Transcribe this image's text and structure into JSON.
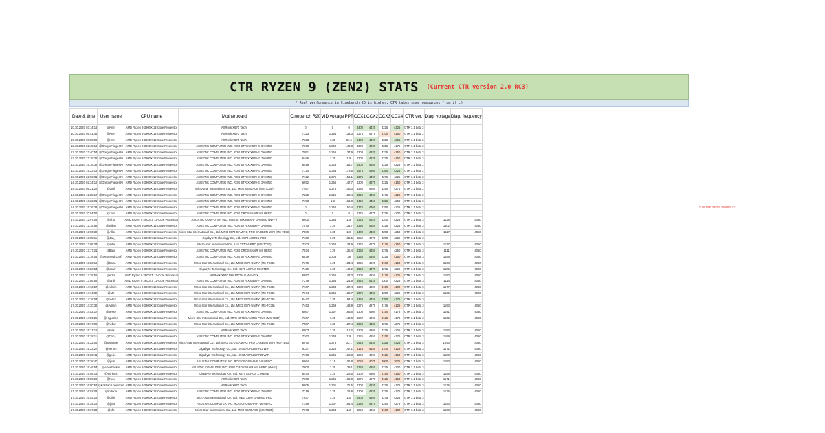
{
  "title": "CTR RYZEN 9 (ZEN2) STATS",
  "subtitle": "(Current CTR version 2.0 RC3)",
  "note": "* Real performance in Cinebench 20 is higher, CTR takes some resources from it ;)",
  "side_note": "< Where Ryzen Master ??",
  "columns": [
    "Date & time",
    "User name",
    "CPU name",
    "Motherboard",
    "Cinebench R20",
    "VID voltage",
    "PPT",
    "CCX1",
    "CCX2",
    "CCX3",
    "CCX4",
    "CTR ver.",
    "Diag. voltage",
    "Diag. frequency"
  ],
  "rows": [
    [
      "10.10.2020 03:14:19",
      "@Knef",
      "AMD Ryzen 9 3900X 12-Core Processor",
      "ASRock X570 Taichi",
      "0",
      "0",
      "0",
      "4400",
      "4425",
      "4225",
      "4325",
      "CTR 1.1 beta 2",
      "",
      ""
    ],
    [
      "10.10.2020 05:41:49",
      "@Knef",
      "AMD Ryzen 9 3900X 12-Core Processor",
      "ASRock X570 Taichi",
      "7323",
      "1.256",
      "131.3",
      "4275",
      "4275",
      "4100",
      "4150",
      "CTR 1.1 beta 2",
      "",
      ""
    ],
    [
      "10.10.2020 08:08:02",
      "@Knef",
      "AMD Ryzen 9 3900X 12-Core Processor",
      "ASRock X570 Taichi",
      "7323",
      "1.35",
      "31.6",
      "4400",
      "4425",
      "4225",
      "4325",
      "CTR 1.1 beta 2",
      "",
      ""
    ],
    [
      "12.10.2020 22:15:19",
      "@GregorFlieger99",
      "AMD Ryzen 9 3900X 12-Core Processor",
      "ASUSTeK COMPUTER INC. ROG STRIX X570-E GAMING",
      "7066",
      "1.269",
      "140.3",
      "4300",
      "4325",
      "4225",
      "4175",
      "CTR 1.1 beta 2",
      "",
      ""
    ],
    [
      "12.10.2020 22:40:54",
      "@GregorFlieger99",
      "AMD Ryzen 9 3900X 12-Core Processor",
      "ASUSTeK COMPUTER INC. ROG STRIX X570-E GAMING",
      "7051",
      "1.256",
      "137.9",
      "4300",
      "4325",
      "4225",
      "4150",
      "CTR 1.1 beta 2",
      "",
      ""
    ],
    [
      "12.10.2020 23:18:32",
      "@GregorFlieger99",
      "AMD Ryzen 9 3900X 12-Core Processor",
      "ASUSTeK COMPUTER INC. ROG STRIX X570-E GAMING",
      "6496",
      "1.25",
      "136",
      "4300",
      "4325",
      "4225",
      "4150",
      "CTR 1.1 beta 2",
      "",
      ""
    ],
    [
      "13.10.2020 15:18:39",
      "@GregorFlieger99",
      "AMD Ryzen 9 3900X 12-Core Processor",
      "ASUSTeK COMPUTER INC. ROG STRIX X570-E GAMING",
      "6919",
      "1.325",
      "154.7",
      "4400",
      "4400",
      "4225",
      "4225",
      "CTR 1.1 beta 2",
      "",
      ""
    ],
    [
      "13.10.2020 19:23:15",
      "@GregorFlieger99",
      "AMD Ryzen 9 3900X 12-Core Processor",
      "ASUSTeK COMPUTER INC. ROG STRIX X570-E GAMING",
      "7124",
      "1.363",
      "176.5",
      "4475",
      "4500",
      "4350",
      "4325",
      "CTR 1.1 beta 2",
      "",
      ""
    ],
    [
      "13.10.2020 22:03:31",
      "@GregorFlieger99",
      "AMD Ryzen 9 3900X 12-Core Processor",
      "ASUSTeK COMPUTER INC. ROG STRIX X570-E GAMING",
      "7122",
      "1.275",
      "151.1",
      "4375",
      "4400",
      "4275",
      "4225",
      "CTR 1.1 beta 2",
      "",
      ""
    ],
    [
      "14.10.2020 02:34:16",
      "@GregorFlieger99",
      "AMD Ryzen 9 3900X 12-Core Processor",
      "ASUSTeK COMPUTER INC. ROG STRIX X570-E GAMING",
      "6952",
      "1.256",
      "147.7",
      "4300",
      "4375",
      "4225",
      "4150",
      "CTR 1.1 beta 2",
      "",
      ""
    ],
    [
      "14.10.2020 05:21:26",
      "@z0lif",
      "AMD Ryzen 9 3900X 12-Core Processor",
      "Micro-Star International Co., Ltd. MEG X570 ACE (MS-7C35)",
      "7467",
      "1.275",
      "146.3",
      "4250",
      "4200",
      "4250",
      "4275",
      "CTR 1.1 beta 2",
      "",
      ""
    ],
    [
      "14.10.2020 12:28:17",
      "@GregorFlieger99",
      "AMD Ryzen 9 3900X 12-Core Processor",
      "ASUSTeK COMPUTER INC. ROG STRIX X570-E GAMING",
      "7225",
      "1.225",
      "138.4",
      "4325",
      "4350",
      "4175",
      "4125",
      "CTR 1.1 beta 2",
      "",
      ""
    ],
    [
      "14.10.2020 13:32:01",
      "@GregorFlieger99",
      "AMD Ryzen 9 3900X 12-Core Processor",
      "ASUSTeK COMPUTER INC. ROG STRIX X570-E GAMING",
      "7153",
      "1.3",
      "161.8",
      "4425",
      "4450",
      "4325",
      "4250",
      "CTR 1.1 beta 2",
      "",
      ""
    ],
    [
      "14.10.2020 15:26:33",
      "@GregorFlieger99",
      "AMD Ryzen 9 3900X 12-Core Processor",
      "ASUSTeK COMPUTER INC. ROG STRIX X570-E GAMING",
      "0",
      "1.256",
      "150.4",
      "4375",
      "4400",
      "4250",
      "4225",
      "CTR 1.1 beta 2",
      "",
      ""
    ],
    [
      "15.10.2020 20:54:09",
      "@Jojo",
      "AMD Ryzen 9 3900X 12-Core Processor",
      "ASUSTeK COMPUTER INC. ROG CROSSHAIR VIII HERO",
      "0",
      "0",
      "0",
      "4275",
      "4275",
      "4275",
      "4300",
      "CTR 1.1 beta 2",
      "",
      ""
    ],
    [
      "17.10.2020 12:07:05",
      "@chu",
      "AMD Ryzen 9 3900XT 12-Core Processor",
      "ASUSTeK COMPUTER INC. ROG STRIX B550-F GAMING (WI-FI)",
      "6900",
      "1.256",
      "138",
      "4325",
      "4325",
      "4200",
      "4225",
      "CTR 1.1 beta 3",
      "1138",
      "4050"
    ],
    [
      "17.10.2020 12:15:55",
      "@Julian",
      "AMD Ryzen 9 3900X 12-Core Processor",
      "ASUSTeK COMPUTER INC. ROG STRIX B550-F GAMING",
      "7570",
      "1.25",
      "134.7",
      "4350",
      "4350",
      "4225",
      "4225",
      "CTR 1.1 beta 3",
      "1102",
      "4050"
    ],
    [
      "17.10.2020 13:00:30",
      "@Allor",
      "AMD Ryzen 9 3900X 12-Core Processor",
      "Micro-Star International Co., Ltd. MPG X570 GAMING PRO CARBON WIFI (MS-7B93)",
      "7580",
      "1.35",
      "186",
      "4400",
      "4400",
      "4250",
      "4250",
      "CTR 1.1 beta 3",
      "1117",
      "4050"
    ],
    [
      "17.10.2020 13:05:11",
      "@Jan_",
      "AMD Ryzen 9 3900X 12-Core Processor",
      "Gigabyte Technology Co., Ltd. X570 AORUS PRO",
      "7139",
      "1.25",
      "136.5",
      "4250",
      "4275",
      "4250",
      "4225",
      "CTR 1.1 beta 3",
      "",
      ""
    ],
    [
      "17.10.2020 13:09:34",
      "@iptle",
      "AMD Ryzen 9 3900X 12-Core Processor",
      "Micro-Star International Co., Ltd. X570-A PRO (MS-7C37)",
      "7303",
      "1.256",
      "132.9",
      "4275",
      "4275",
      "4125",
      "4150",
      "CTR 1.1 beta 3",
      "1177",
      "4050"
    ],
    [
      "17.10.2020 13:17:21",
      "@Base",
      "AMD Ryzen 9 3900X 12-Core Processor",
      "ASUSTeK COMPUTER INC. ROG CROSSHAIR VIII HERO",
      "7034",
      "1.25",
      "135.4",
      "4350",
      "4350",
      "4275",
      "4250",
      "CTR 1.1 beta 3",
      "1111",
      "4050"
    ],
    [
      "17.10.2020 13:18:09",
      "@Desmond Croft",
      "AMD Ryzen 9 3900X 12-Core Processor",
      "ASUSTeK COMPUTER INC. ROG STRIX X570-E GAMING",
      "6839",
      "1.306",
      "38",
      "4350",
      "4350",
      "4225",
      "4150",
      "CTR 1.1 beta 3",
      "1199",
      "4050"
    ],
    [
      "17.10.2020 13:23:15",
      "@Coca",
      "AMD Ryzen 9 3900X 12-Core Processor",
      "Micro-Star International Co., Ltd. MEG X570 UNIFY (MS-7C35)",
      "7379",
      "1.25",
      "134.4",
      "4225",
      "4225",
      "4100",
      "4150",
      "CTR 1.1 beta 3",
      "1198",
      "4050"
    ],
    [
      "17.10.2020 13:26:54",
      "@tanvir",
      "AMD Ryzen 9 3900X 12-Core Processor",
      "Gigabyte Technology Co., Ltd. X570 AORUS MASTER",
      "7429",
      "1.25",
      "142.9",
      "4350",
      "4375",
      "4275",
      "4225",
      "CTR 1.1 beta 3",
      "1105",
      "4050"
    ],
    [
      "17.10.2020 13:39:55",
      "@edze",
      "AMD Ryzen 9 3900XT 12-Core Processor",
      "ASRock X570 PHANTOM GAMING X",
      "6867",
      "1.256",
      "147.3",
      "4200",
      "4250",
      "4125",
      "4125",
      "CTR 1.1 beta 3",
      "1150",
      "4050"
    ],
    [
      "17.10.2020 13:56:52",
      "@ardi",
      "AMD Ryzen 9 3900XT 12-Core Processor",
      "ASUSTeK COMPUTER INC. ROG STRIX B550-F GAMING",
      "7279",
      "1.256",
      "121.9",
      "4425",
      "4425",
      "4300",
      "4225",
      "CTR 1.1 beta 3",
      "1114",
      "4050"
    ],
    [
      "17.10.2020 14:13:57",
      "@Admin",
      "AMD Ryzen 9 3900X 12-Core Processor",
      "Micro-Star International Co., Ltd. MEG X570 UNIFY (MS-7C35)",
      "7107",
      "1.263",
      "137.4",
      "4300",
      "4300",
      "4150",
      "4100",
      "CTR 1.1 beta 3",
      "1177",
      "4050"
    ],
    [
      "17.10.2020 14:14:38",
      "@Mc",
      "AMD Ryzen 9 3900X 12-Core Processor",
      "Micro-Star International Co., Ltd. MEG X570 UNIFY (MS-7C35)",
      "7374",
      "1.256",
      "132.7",
      "4375",
      "4350",
      "4250",
      "4225",
      "CTR 1.1 beta 3",
      "1135",
      "4050"
    ],
    [
      "17.10.2020 14:18:04",
      "@nebur",
      "AMD Ryzen 9 3900X 12-Core Processor",
      "Micro-Star International Co., Ltd. MEG X570 UNIFY (MS-7C35)",
      "6447",
      "1.35",
      "194.4",
      "4450",
      "4450",
      "4350",
      "4375",
      "CTR 1.1 beta 3",
      "",
      ""
    ],
    [
      "17.10.2020 14:30:39",
      "@Admin",
      "AMD Ryzen 9 3900X 12-Core Processor",
      "Micro-Star International Co., Ltd. MEG X570 UNIFY (MS-7C35)",
      "7493",
      "1.269",
      "143.9",
      "4275",
      "4275",
      "4175",
      "4125",
      "CTR 1.1 beta 3",
      "1193",
      "4050"
    ],
    [
      "17.10.2020 14:52:17",
      "@Jesse",
      "AMD Ryzen 9 3900X 12-Core Processor",
      "ASUSTeK COMPUTER INC. ROG STRIX X570-E GAMING",
      "6867",
      "1.237",
      "165.6",
      "4300",
      "4300",
      "4150",
      "4175",
      "CTR 1.1 beta 3",
      "1141",
      "4050"
    ],
    [
      "17.10.2020 14:56:28",
      "@Hyperion",
      "AMD Ryzen 9 3900X 12-Core Processor",
      "Micro-Star International Co., Ltd. MPG X570 GAMING PLUS (MS-7C37)",
      "7337",
      "1.25",
      "140.8",
      "4200",
      "4200",
      "4125",
      "4175",
      "CTR 1.1 beta 3",
      "1166",
      "4050"
    ],
    [
      "17.10.2020 15:17:09",
      "@nebur",
      "AMD Ryzen 9 3900X 12-Core Processor",
      "Micro-Star International Co., Ltd. MEG X570 UNIFY (MS-7C35)",
      "7557",
      "1.35",
      "187.4",
      "4350",
      "4350",
      "4275",
      "4275",
      "CTR 1.1 beta 3",
      "",
      ""
    ],
    [
      "17.10.2020 15:17:18",
      "@Nik",
      "AMD Ryzen 9 3900X 12-Core Processor",
      "ASRock X570 Taichi",
      "6903",
      "1.25",
      "116.3",
      "4200",
      "4200",
      "4225",
      "4225",
      "CTR 1.1 beta 3",
      "1153",
      "4050"
    ],
    [
      "17.10.2020 15:18:11",
      "@Coca",
      "AMD Ryzen 9 3900X 12-Core Processor",
      "ASUSTeK COMPUTER INC. ROG STRIX X570-F GAMING",
      "7362",
      "1.263",
      "138",
      "4225",
      "4250",
      "4150",
      "4175",
      "CTR 1.1 beta 3",
      "1198",
      "4050"
    ],
    [
      "17.10.2020 15:22:06",
      "@Santa8K",
      "AMD Ryzen 9 3900X 12-Core Processor",
      "Micro-Star International Co., Ltd. MPG X570 GAMING PRO CARBON WIFI (MS-7B93)",
      "6970",
      "1.275",
      "33.1",
      "4425",
      "4450",
      "4325",
      "4325",
      "CTR 1.1 beta 3",
      "1093",
      "4050"
    ],
    [
      "17.10.2020 15:23:27",
      "@Yenon",
      "AMD Ryzen 9 3900X 12-Core Processor",
      "Gigabyte Technology Co., Ltd. X570 AORUS PRO WIFI",
      "9337",
      "1.225",
      "147.1",
      "4125",
      "4150",
      "4100",
      "4125",
      "CTR 1.1 beta 3",
      "1171",
      "4050"
    ],
    [
      "17.10.2020 15:30:41",
      "@gesic",
      "AMD Ryzen 9 3900X 12-Core Processor",
      "Gigabyte Technology Co., Ltd. X570 AORUS PRO WIFI",
      "7198",
      "1.256",
      "168.3",
      "4250",
      "4250",
      "4125",
      "4150",
      "CTR 1.1 beta 3",
      "1183",
      "4050"
    ],
    [
      "17.10.2020 15:38:40",
      "@jixis",
      "AMD Ryzen 9 3900X 12-Core Processor",
      "ASUSTeK COMPUTER INC. ROG CROSSHAIR VII HERO",
      "6964",
      "1.15",
      "106.8",
      "4050",
      "4075",
      "4000",
      "3975",
      "CTR 1.1 beta 3",
      "1153",
      "4050"
    ],
    [
      "17.10.2020 15:46:54",
      "@eswebasker",
      "AMD Ryzen 9 3900X 12-Core Processor",
      "ASUSTeK COMPUTER INC. ROG CROSSHAIR VIII HERO (WI-FI)",
      "7600",
      "1.25",
      "139.1",
      "4350",
      "4350",
      "4225",
      "4200",
      "CTR 1.1 beta 3",
      "",
      ""
    ],
    [
      "17.10.2020 15:58:14",
      "@enrinus",
      "AMD Ryzen 9 3900X 12-Core Processor",
      "Gigabyte Technology Co., Ltd. X570 AORUS XTREME",
      "6434",
      "1.25",
      "128.5",
      "4300",
      "4300",
      "4150",
      "4150",
      "CTR 1.1 beta 3",
      "1158",
      "4050"
    ],
    [
      "17.10.2020 15:59:29",
      "@Neur",
      "AMD Ryzen 9 3900X 12-Core Processor",
      "ASRock X570 Taichi",
      "7300",
      "1.256",
      "130.8",
      "4275",
      "4275",
      "4125",
      "4150",
      "CTR 1.1 beta 3",
      "1171",
      "4050"
    ],
    [
      "17.10.2020 16:00:57",
      "@Kristian Lorentzen",
      "AMD Ryzen 9 3900X 12-Core Processor",
      "ASRock X570 Taichi",
      "9905",
      "1.231",
      "171.5",
      "4300",
      "4325",
      "4225",
      "4175",
      "CTR 1.1 beta 3",
      "1135",
      "4050"
    ],
    [
      "17.10.2020 16:02:03",
      "@rndnda",
      "AMD Ryzen 9 3900X 12-Core Processor",
      "ASUSTeK COMPUTER INC. ROG STRIX X570-E GAMING",
      "7319",
      "1.25",
      "128.8",
      "4300",
      "4325",
      "4225",
      "4175",
      "CTR 1.1 beta 3",
      "1135",
      "4050"
    ],
    [
      "17.10.2020 16:03:25",
      "@Gibir",
      "AMD Ryzen 9 3900X 12-Core Processor",
      "Micro-Star International Co., Ltd. MEG X570 GAMING PRO",
      "7637",
      "1.25",
      "140",
      "4400",
      "4400",
      "4275",
      "4225",
      "CTR 1.1 beta 3",
      "",
      ""
    ],
    [
      "17.10.2020 16:34:19",
      "@jixis",
      "AMD Ryzen 9 3900X 12-Core Processor",
      "ASUSTeK COMPUTER INC. ROG CROSSHAIR VII HERO",
      "7399",
      "1.337",
      "164.4",
      "4350",
      "4375",
      "4250",
      "4275",
      "CTR 1.1 beta 3",
      "1193",
      "4050"
    ],
    [
      "17.10.2020 16:37:33",
      "@nfo",
      "AMD Ryzen 9 3900X 12-Core Processor",
      "Micro-Star International Co., Ltd. MEG X570 ACE (MS-7C35)",
      "7073",
      "1.263",
      "140",
      "4250",
      "4250",
      "4100",
      "4100",
      "CTR 1.1 beta 3",
      "1193",
      "4050"
    ]
  ]
}
